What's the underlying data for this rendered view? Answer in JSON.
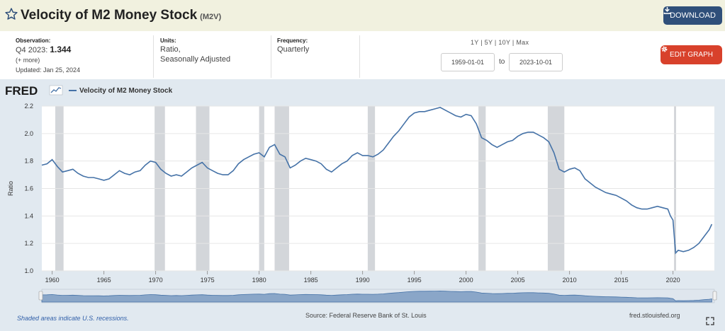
{
  "header": {
    "title": "Velocity of M2 Money Stock",
    "series_code": "(M2V)",
    "download_label": "DOWNLOAD"
  },
  "meta": {
    "observation_label": "Observation:",
    "observation_period": "Q4 2023:",
    "observation_value": "1.344",
    "more": "(+ more)",
    "updated": "Updated: Jan 25, 2024",
    "units_label": "Units:",
    "units_line1": "Ratio,",
    "units_line2": "Seasonally Adjusted",
    "frequency_label": "Frequency:",
    "frequency_value": "Quarterly"
  },
  "controls": {
    "ranges": "1Y | 5Y | 10Y | Max",
    "start_date": "1959-01-01",
    "to_label": "to",
    "end_date": "2023-10-01",
    "edit_label": "EDIT GRAPH"
  },
  "colors": {
    "line": "#4572a7",
    "recession": "#d3d6da",
    "plot_bg": "#ffffff",
    "outer_bg": "#e1e9f0",
    "accent_download": "#2f4f7a",
    "accent_edit": "#d8412b"
  },
  "footer": {
    "fred_logo": "FRED",
    "legend_label": "Velocity of M2 Money Stock",
    "recession_note": "Shaded areas indicate U.S. recessions.",
    "source": "Source: Federal Reserve Bank of St. Louis",
    "url": "fred.stlouisfed.org"
  },
  "chart_data": {
    "type": "line",
    "title": "Velocity of M2 Money Stock",
    "xlabel": "",
    "ylabel": "Ratio",
    "xlim": [
      1959.0,
      2024.0
    ],
    "ylim": [
      1.0,
      2.2
    ],
    "x_ticks": [
      1960,
      1965,
      1970,
      1975,
      1980,
      1985,
      1990,
      1995,
      2000,
      2005,
      2010,
      2015,
      2020
    ],
    "y_ticks": [
      "1.0",
      "1.2",
      "1.4",
      "1.6",
      "1.8",
      "2.0",
      "2.2"
    ],
    "recessions": [
      [
        1960.3,
        1961.1
      ],
      [
        1969.9,
        1970.9
      ],
      [
        1973.9,
        1975.2
      ],
      [
        1980.0,
        1980.5
      ],
      [
        1981.5,
        1982.9
      ],
      [
        1990.5,
        1991.2
      ],
      [
        2001.2,
        2001.9
      ],
      [
        2007.9,
        2009.5
      ],
      [
        2020.1,
        2020.3
      ]
    ],
    "series": [
      {
        "name": "Velocity of M2 Money Stock",
        "x": [
          1959.0,
          1959.5,
          1960.0,
          1960.5,
          1961.0,
          1961.5,
          1962.0,
          1962.5,
          1963.0,
          1963.5,
          1964.0,
          1964.5,
          1965.0,
          1965.5,
          1966.0,
          1966.5,
          1967.0,
          1967.5,
          1968.0,
          1968.5,
          1969.0,
          1969.5,
          1970.0,
          1970.5,
          1971.0,
          1971.5,
          1972.0,
          1972.5,
          1973.0,
          1973.5,
          1974.0,
          1974.5,
          1975.0,
          1975.5,
          1976.0,
          1976.5,
          1977.0,
          1977.5,
          1978.0,
          1978.5,
          1979.0,
          1979.5,
          1980.0,
          1980.5,
          1981.0,
          1981.5,
          1982.0,
          1982.5,
          1983.0,
          1983.5,
          1984.0,
          1984.5,
          1985.0,
          1985.5,
          1986.0,
          1986.5,
          1987.0,
          1987.5,
          1988.0,
          1988.5,
          1989.0,
          1989.5,
          1990.0,
          1990.5,
          1991.0,
          1991.5,
          1992.0,
          1992.5,
          1993.0,
          1993.5,
          1994.0,
          1994.5,
          1995.0,
          1995.5,
          1996.0,
          1996.5,
          1997.0,
          1997.5,
          1998.0,
          1998.5,
          1999.0,
          1999.5,
          2000.0,
          2000.5,
          2001.0,
          2001.5,
          2002.0,
          2002.5,
          2003.0,
          2003.5,
          2004.0,
          2004.5,
          2005.0,
          2005.5,
          2006.0,
          2006.5,
          2007.0,
          2007.5,
          2008.0,
          2008.5,
          2009.0,
          2009.5,
          2010.0,
          2010.5,
          2011.0,
          2011.5,
          2012.0,
          2012.5,
          2013.0,
          2013.5,
          2014.0,
          2014.5,
          2015.0,
          2015.5,
          2016.0,
          2016.5,
          2017.0,
          2017.5,
          2018.0,
          2018.5,
          2019.0,
          2019.5,
          2019.75,
          2020.0,
          2020.25,
          2020.5,
          2021.0,
          2021.5,
          2022.0,
          2022.5,
          2023.0,
          2023.5,
          2023.75
        ],
        "values": [
          1.77,
          1.78,
          1.81,
          1.76,
          1.72,
          1.73,
          1.74,
          1.71,
          1.69,
          1.68,
          1.68,
          1.67,
          1.66,
          1.67,
          1.7,
          1.73,
          1.71,
          1.7,
          1.72,
          1.73,
          1.77,
          1.8,
          1.79,
          1.74,
          1.71,
          1.69,
          1.7,
          1.69,
          1.72,
          1.75,
          1.77,
          1.79,
          1.75,
          1.73,
          1.71,
          1.7,
          1.7,
          1.73,
          1.78,
          1.81,
          1.83,
          1.85,
          1.86,
          1.83,
          1.9,
          1.92,
          1.85,
          1.83,
          1.75,
          1.77,
          1.8,
          1.82,
          1.81,
          1.8,
          1.78,
          1.74,
          1.72,
          1.75,
          1.78,
          1.8,
          1.84,
          1.86,
          1.84,
          1.84,
          1.83,
          1.85,
          1.88,
          1.93,
          1.98,
          2.02,
          2.07,
          2.12,
          2.15,
          2.16,
          2.16,
          2.17,
          2.18,
          2.19,
          2.17,
          2.15,
          2.13,
          2.12,
          2.14,
          2.13,
          2.07,
          1.97,
          1.95,
          1.92,
          1.9,
          1.92,
          1.94,
          1.95,
          1.98,
          2.0,
          2.01,
          2.01,
          1.99,
          1.97,
          1.94,
          1.86,
          1.74,
          1.72,
          1.74,
          1.75,
          1.73,
          1.67,
          1.64,
          1.61,
          1.59,
          1.57,
          1.56,
          1.55,
          1.53,
          1.51,
          1.48,
          1.46,
          1.45,
          1.45,
          1.46,
          1.47,
          1.46,
          1.45,
          1.4,
          1.37,
          1.13,
          1.15,
          1.14,
          1.15,
          1.17,
          1.2,
          1.25,
          1.3,
          1.34
        ]
      }
    ]
  }
}
